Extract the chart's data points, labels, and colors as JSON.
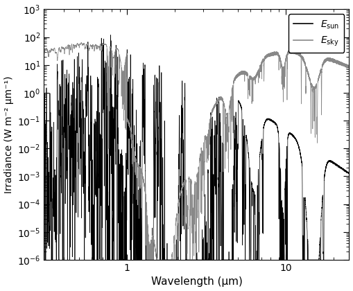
{
  "xlabel": "Wavelength (μm)",
  "ylabel": "Irradiance (W m⁻² μm⁻¹)",
  "xlim": [
    0.3,
    25
  ],
  "ylim": [
    1e-06,
    1000.0
  ],
  "sun_color": "#000000",
  "sky_color": "#888888",
  "background_color": "#ffffff",
  "figsize": [
    5.09,
    4.2
  ],
  "dpi": 100
}
